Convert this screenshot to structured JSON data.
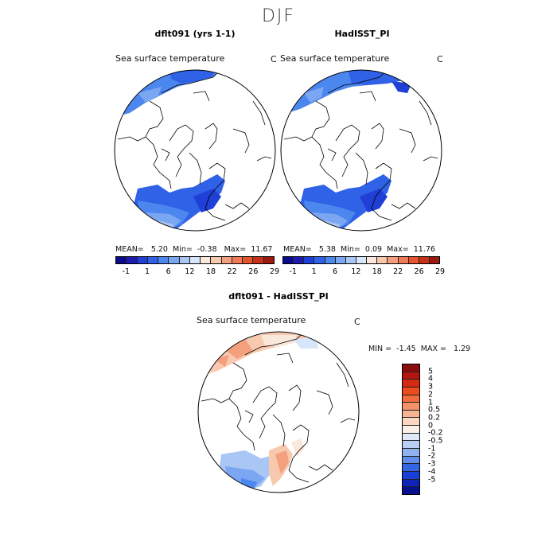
{
  "page": {
    "title": "DJF"
  },
  "panels": [
    {
      "title": "dflt091 (yrs 1-1)",
      "subtitle": "Sea surface temperature",
      "unit": "C",
      "stats": {
        "mean_label": "MEAN=",
        "mean": "5.20",
        "min_label": "Min=",
        "min": "-0.38",
        "max_label": "Max=",
        "max": "11.67"
      }
    },
    {
      "title": "HadISST_PI",
      "subtitle": "Sea surface temperature",
      "unit": "C",
      "stats": {
        "mean_label": "MEAN=",
        "mean": "5.38",
        "min_label": "Min=",
        "min": "0.09",
        "max_label": "Max=",
        "max": "11.76"
      }
    },
    {
      "title": "dflt091 - HadISST_PI",
      "subtitle": "Sea surface temperature",
      "unit": "C",
      "stats": {
        "min_label": "MIN =",
        "min": "-1.45",
        "max_label": "MAX =",
        "max": "1.29"
      }
    }
  ],
  "colorbar_abs": {
    "colors": [
      "#0a0a8c",
      "#1b1bb4",
      "#1f3fd6",
      "#2f62e6",
      "#4c86ef",
      "#7aa6f2",
      "#a9c6f5",
      "#d8e6fa",
      "#fbe8dc",
      "#f8c9ae",
      "#f4a07e",
      "#ef7a55",
      "#e5532f",
      "#c7311a",
      "#9a1a10"
    ],
    "tick_labels": [
      "-1",
      "1",
      "6",
      "12",
      "18",
      "22",
      "26",
      "29"
    ]
  },
  "colorbar_diff": {
    "colors": [
      "#8a0d0d",
      "#b3150f",
      "#d52a12",
      "#ec4a1f",
      "#f26c3d",
      "#f59067",
      "#f8b593",
      "#fbd6c0",
      "#fdf0e6",
      "#dfe9f8",
      "#b9cff3",
      "#8fb1ee",
      "#5f8de8",
      "#3565e2",
      "#1a3fd8",
      "#0f23b8",
      "#07108e"
    ],
    "tick_labels": [
      "5",
      "4",
      "3",
      "2",
      "1",
      "0.5",
      "0.2",
      "0",
      "-0.2",
      "-0.5",
      "-1",
      "-2",
      "-3",
      "-4",
      "-5"
    ]
  }
}
